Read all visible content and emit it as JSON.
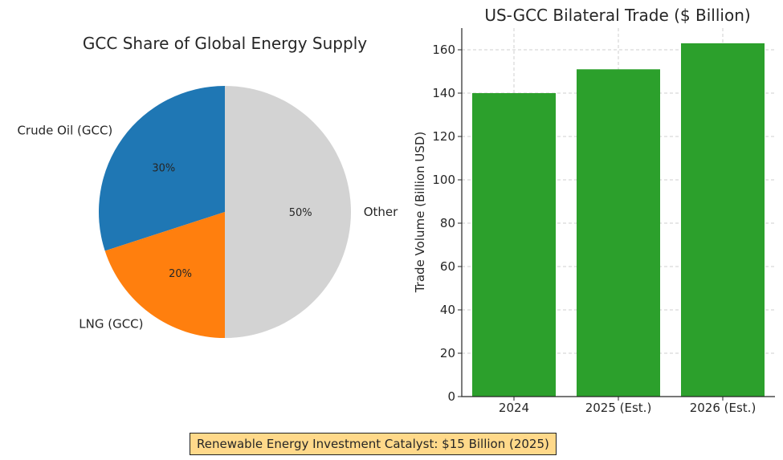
{
  "chart_data": [
    {
      "type": "pie",
      "title": "GCC Share of Global Energy Supply",
      "slices": [
        {
          "label": "Crude Oil (GCC)",
          "value": 30,
          "pct_label": "30%",
          "color": "#1f77b4"
        },
        {
          "label": "LNG (GCC)",
          "value": 20,
          "pct_label": "20%",
          "color": "#ff7f0e"
        },
        {
          "label": "Other",
          "value": 50,
          "pct_label": "50%",
          "color": "#d3d3d3"
        }
      ]
    },
    {
      "type": "bar",
      "title": "US-GCC Bilateral Trade ($ Billion)",
      "categories": [
        "2024",
        "2025 (Est.)",
        "2026 (Est.)"
      ],
      "values": [
        140,
        151,
        163
      ],
      "ylabel": "Trade Volume (Billion USD)",
      "ylim": [
        0,
        170
      ],
      "yticks": [
        0,
        20,
        40,
        60,
        80,
        100,
        120,
        140,
        160
      ],
      "grid": true,
      "color": "#2ca02c"
    }
  ],
  "callout": {
    "text": "Renewable Energy Investment Catalyst: $15 Billion (2025)"
  }
}
